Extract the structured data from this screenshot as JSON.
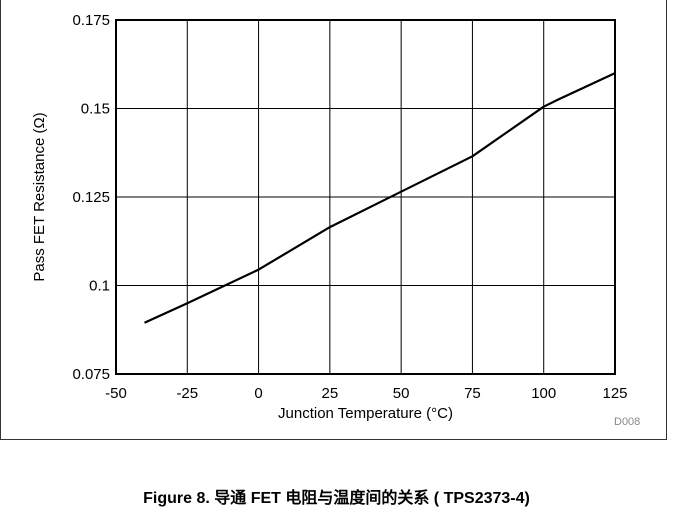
{
  "chart_data": {
    "type": "line",
    "xlabel": "Junction Temperature (°C)",
    "ylabel": "Pass FET Resistance (Ω)",
    "xlim": [
      -50,
      125
    ],
    "ylim": [
      0.075,
      0.175
    ],
    "x_ticks": [
      "-50",
      "-25",
      "0",
      "25",
      "50",
      "75",
      "100",
      "125"
    ],
    "y_ticks": [
      "0.075",
      "0.1",
      "0.125",
      "0.15",
      "0.175"
    ],
    "grid": true,
    "series": [
      {
        "x": [
          -40,
          -25,
          0,
          25,
          50,
          75,
          100,
          105,
          125
        ],
        "y": [
          0.0895,
          0.095,
          0.1045,
          0.1165,
          0.1265,
          0.1365,
          0.1505,
          0.1525,
          0.16
        ],
        "color": "#000000"
      }
    ]
  },
  "figure_code": "D008",
  "caption": "Figure 8. 导通 FET 电阻与温度间的关系 ( TPS2373-4)"
}
